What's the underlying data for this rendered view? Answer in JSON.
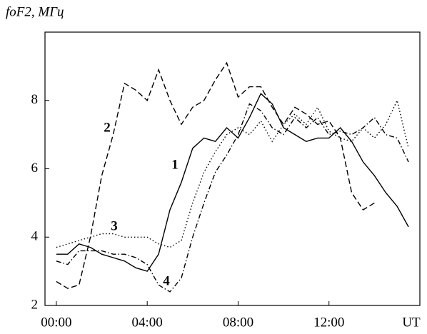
{
  "chart_data": {
    "type": "line",
    "y_label": "foF2, МГц",
    "x": [
      0,
      0.5,
      1,
      1.5,
      2,
      2.5,
      3,
      3.5,
      4,
      4.5,
      5,
      5.5,
      6,
      6.5,
      7,
      7.5,
      8,
      8.5,
      9,
      9.5,
      10,
      10.5,
      11,
      11.5,
      12,
      12.5,
      13,
      13.5,
      14,
      14.5,
      15,
      15.5,
      16
    ],
    "series": [
      {
        "name": "1",
        "color": "#000000",
        "dash": "solid",
        "values": [
          3.5,
          3.5,
          3.8,
          3.7,
          3.5,
          3.4,
          3.3,
          3.1,
          3.0,
          3.5,
          4.8,
          5.6,
          6.6,
          6.9,
          6.8,
          7.2,
          6.9,
          7.5,
          8.2,
          7.9,
          7.2,
          7.0,
          6.8,
          6.9,
          6.9,
          7.2,
          6.8,
          6.2,
          5.8,
          5.3,
          4.9,
          4.3,
          null
        ]
      },
      {
        "name": "2",
        "color": "#000000",
        "dash": "dashed",
        "values": [
          2.7,
          2.5,
          2.6,
          4.0,
          5.8,
          7.0,
          8.5,
          8.3,
          8.0,
          8.9,
          8.0,
          7.3,
          7.8,
          8.0,
          8.6,
          9.1,
          8.1,
          8.4,
          8.4,
          7.8,
          7.3,
          7.8,
          7.6,
          7.3,
          7.4,
          6.9,
          5.3,
          4.8,
          5.0,
          null,
          null,
          null,
          null
        ]
      },
      {
        "name": "3",
        "color": "#000000",
        "dash": "dotted",
        "values": [
          3.7,
          3.8,
          3.9,
          4.0,
          4.1,
          4.1,
          4.0,
          4.0,
          4.0,
          3.8,
          3.7,
          3.9,
          5.0,
          5.9,
          6.5,
          7.0,
          7.2,
          7.0,
          7.4,
          6.8,
          7.3,
          7.6,
          7.3,
          7.8,
          7.1,
          6.9,
          6.8,
          7.2,
          6.9,
          7.3,
          8.0,
          6.6,
          null
        ]
      },
      {
        "name": "4",
        "color": "#000000",
        "dash": "dashdot",
        "values": [
          3.3,
          3.2,
          3.6,
          3.6,
          3.6,
          3.5,
          3.5,
          3.4,
          3.2,
          2.6,
          2.4,
          2.8,
          4.0,
          5.0,
          5.9,
          6.4,
          7.0,
          7.9,
          7.7,
          7.2,
          7.0,
          7.5,
          7.2,
          7.5,
          7.0,
          7.1,
          7.0,
          7.2,
          7.5,
          7.0,
          6.9,
          6.2,
          null
        ]
      }
    ],
    "xlim": [
      -0.5,
      16
    ],
    "xticks": [
      {
        "value": 0,
        "label": "00:00"
      },
      {
        "value": 4,
        "label": "04:00"
      },
      {
        "value": 8,
        "label": "08:00"
      },
      {
        "value": 12,
        "label": "12:00"
      },
      {
        "value": 16,
        "label": "UT"
      }
    ],
    "ylim": [
      2,
      10
    ],
    "yticks": [
      2,
      4,
      6,
      8
    ],
    "grid": false
  }
}
